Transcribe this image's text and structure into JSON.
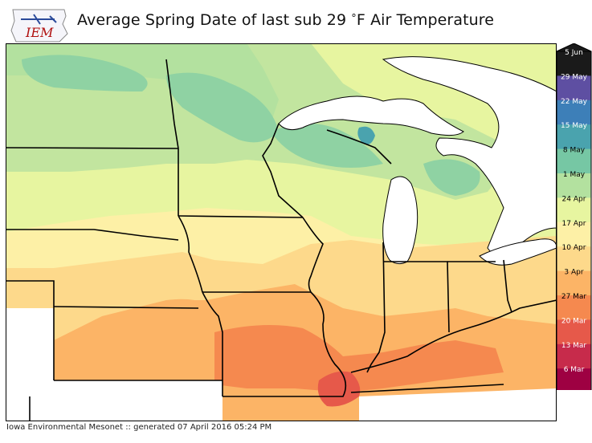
{
  "header": {
    "logo_text": "IEM",
    "title_main": "Average Spring Date of last sub 29 ",
    "title_degree": "°",
    "title_unit": "F Air Temperature"
  },
  "footer": {
    "credit": "Iowa Environmental Mesonet :: generated 07 April 2016 05:24 PM"
  },
  "legend": {
    "labels": [
      "5 Jun",
      "29 May",
      "22 May",
      "15 May",
      "8 May",
      "1 May",
      "24 Apr",
      "17 Apr",
      "10 Apr",
      "3 Apr",
      "27 Mar",
      "20 Mar",
      "13 Mar",
      "6 Mar"
    ],
    "colors": [
      "#1a1a1a",
      "#5e4fa2",
      "#3d7fb8",
      "#4aa3ae",
      "#76c7a4",
      "#b3e19f",
      "#e7f5a0",
      "#fdf0a6",
      "#fdd98b",
      "#fcb466",
      "#f5894f",
      "#e6594a",
      "#c72b4b",
      "#9e0142"
    ],
    "arrow_top_color": "#1a1a1a",
    "arrow_bottom_color": "#ffffff"
  },
  "map": {
    "water_color": "#ffffff",
    "state_border_color": "#000000"
  }
}
